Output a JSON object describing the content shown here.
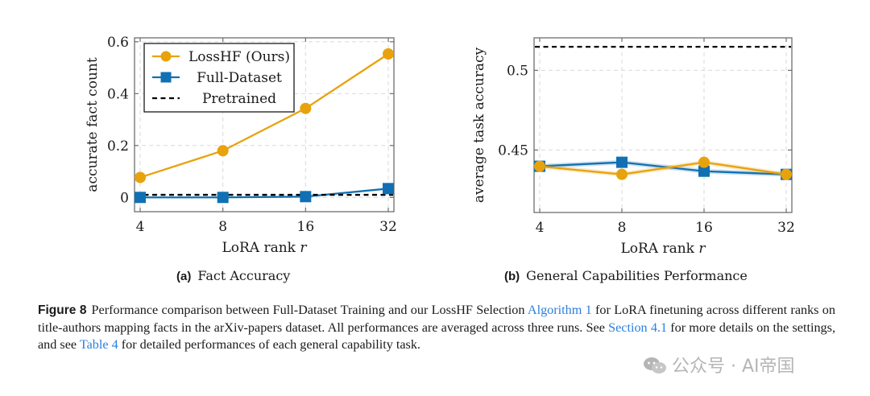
{
  "chart_data": [
    {
      "type": "line",
      "id": "a",
      "title": "",
      "subcaption_label": "(a)",
      "subcaption_text": "Fact Accuracy",
      "xlabel": "LoRA rank",
      "xlabel_var": "r",
      "ylabel": "accurate fact count",
      "x": [
        4,
        8,
        16,
        32
      ],
      "x_tick_labels": [
        "4",
        "8",
        "16",
        "32"
      ],
      "x_scale": "log2",
      "y_ticks": [
        0,
        0.2,
        0.4,
        0.6
      ],
      "y_tick_labels": [
        "0",
        "0.2",
        "0.4",
        "0.6"
      ],
      "ylim": [
        -0.055,
        0.615
      ],
      "grid": true,
      "legend": {
        "placement": "top-left",
        "entries": [
          "LossHF (Ours)",
          "Full-Dataset",
          "Pretrained"
        ]
      },
      "series": [
        {
          "name": "LossHF (Ours)",
          "marker": "circle",
          "color": "#E8A20C",
          "values": [
            0.077,
            0.18,
            0.343,
            0.553
          ]
        },
        {
          "name": "Full-Dataset",
          "marker": "square",
          "color": "#1170B3",
          "values": [
            0.0,
            0.0,
            0.003,
            0.034
          ]
        },
        {
          "name": "Pretrained",
          "marker": "none",
          "style": "dashed",
          "color": "#000000",
          "constant": 0.01
        }
      ]
    },
    {
      "type": "line",
      "id": "b",
      "title": "",
      "subcaption_label": "(b)",
      "subcaption_text": "General Capabilities Performance",
      "xlabel": "LoRA rank",
      "xlabel_var": "r",
      "ylabel": "average task accuracy",
      "x": [
        4,
        8,
        16,
        32
      ],
      "x_tick_labels": [
        "4",
        "8",
        "16",
        "32"
      ],
      "x_scale": "log2",
      "y_ticks": [
        0.45,
        0.5
      ],
      "y_tick_labels": [
        "0.45",
        "0.5"
      ],
      "ylim": [
        0.4108,
        0.5204
      ],
      "grid": true,
      "shaded_error_band": true,
      "series": [
        {
          "name": "Full-Dataset",
          "marker": "square",
          "color": "#1170B3",
          "values": [
            0.4398,
            0.4423,
            0.4367,
            0.4347
          ],
          "band": 0.0015
        },
        {
          "name": "LossHF (Ours)",
          "marker": "circle",
          "color": "#E8A20C",
          "values": [
            0.4398,
            0.4347,
            0.4423,
            0.4347
          ],
          "band": 0.0015
        },
        {
          "name": "Pretrained",
          "marker": "none",
          "style": "dashed",
          "color": "#000000",
          "constant": 0.5148
        }
      ]
    }
  ],
  "caption": {
    "figure_label": "Figure 8",
    "parts": [
      {
        "text": "Performance comparison between Full-Dataset Training and our LossHF Selection ",
        "link": false
      },
      {
        "text": "Algorithm 1",
        "link": true
      },
      {
        "text": " for LoRA finetuning across different ranks on title-authors mapping facts in the arXiv-papers dataset.  All performances are averaged across three runs.  See ",
        "link": false
      },
      {
        "text": "Section 4.1",
        "link": true
      },
      {
        "text": " for more details on the settings, and see ",
        "link": false
      },
      {
        "text": "Table 4",
        "link": true
      },
      {
        "text": " for detailed performances of each general capability task.",
        "link": false
      }
    ]
  },
  "watermark": {
    "icon": "wechat-icon",
    "text": "公众号 · AI帝国"
  }
}
